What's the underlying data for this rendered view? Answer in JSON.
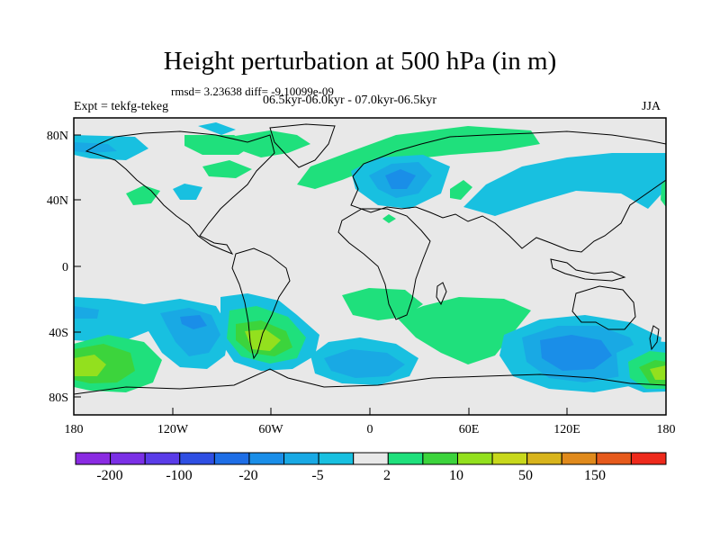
{
  "title": "Height perturbation at 500 hPa (in m)",
  "stats": "rmsd= 3.23638 diff= -9.10099e-09",
  "experiment": "Expt = tekfg-tekeg",
  "period": "06.5kyr-06.0kyr - 07.0kyr-06.5kyr",
  "season": "JJA",
  "lat_labels": [
    "80N",
    "40N",
    "0",
    "40S",
    "80S"
  ],
  "lon_labels": [
    "180",
    "120W",
    "60W",
    "0",
    "60E",
    "120E",
    "180"
  ],
  "colorbar": {
    "colors": [
      "#8a2be2",
      "#7b30e6",
      "#5a3ce8",
      "#2f4fe3",
      "#1e6ee6",
      "#1a8ee8",
      "#19a9e4",
      "#18c0e0",
      "#e8e8e8",
      "#1fe07c",
      "#3cd43c",
      "#93e01e",
      "#c8d81c",
      "#d8b41c",
      "#e08a1c",
      "#e65a1c",
      "#ee2a1c"
    ],
    "tick_labels": [
      "-200",
      "-100",
      "-20",
      "-5",
      "2",
      "10",
      "50",
      "150"
    ]
  },
  "field_colors": {
    "neutral": "#e8e8e8",
    "pos_light": "#1fe07c",
    "pos_mid": "#3cd43c",
    "pos_strong": "#93e01e",
    "neg_light": "#18c0e0",
    "neg_mid": "#19a9e4",
    "neg_strong": "#1a8ee8"
  }
}
